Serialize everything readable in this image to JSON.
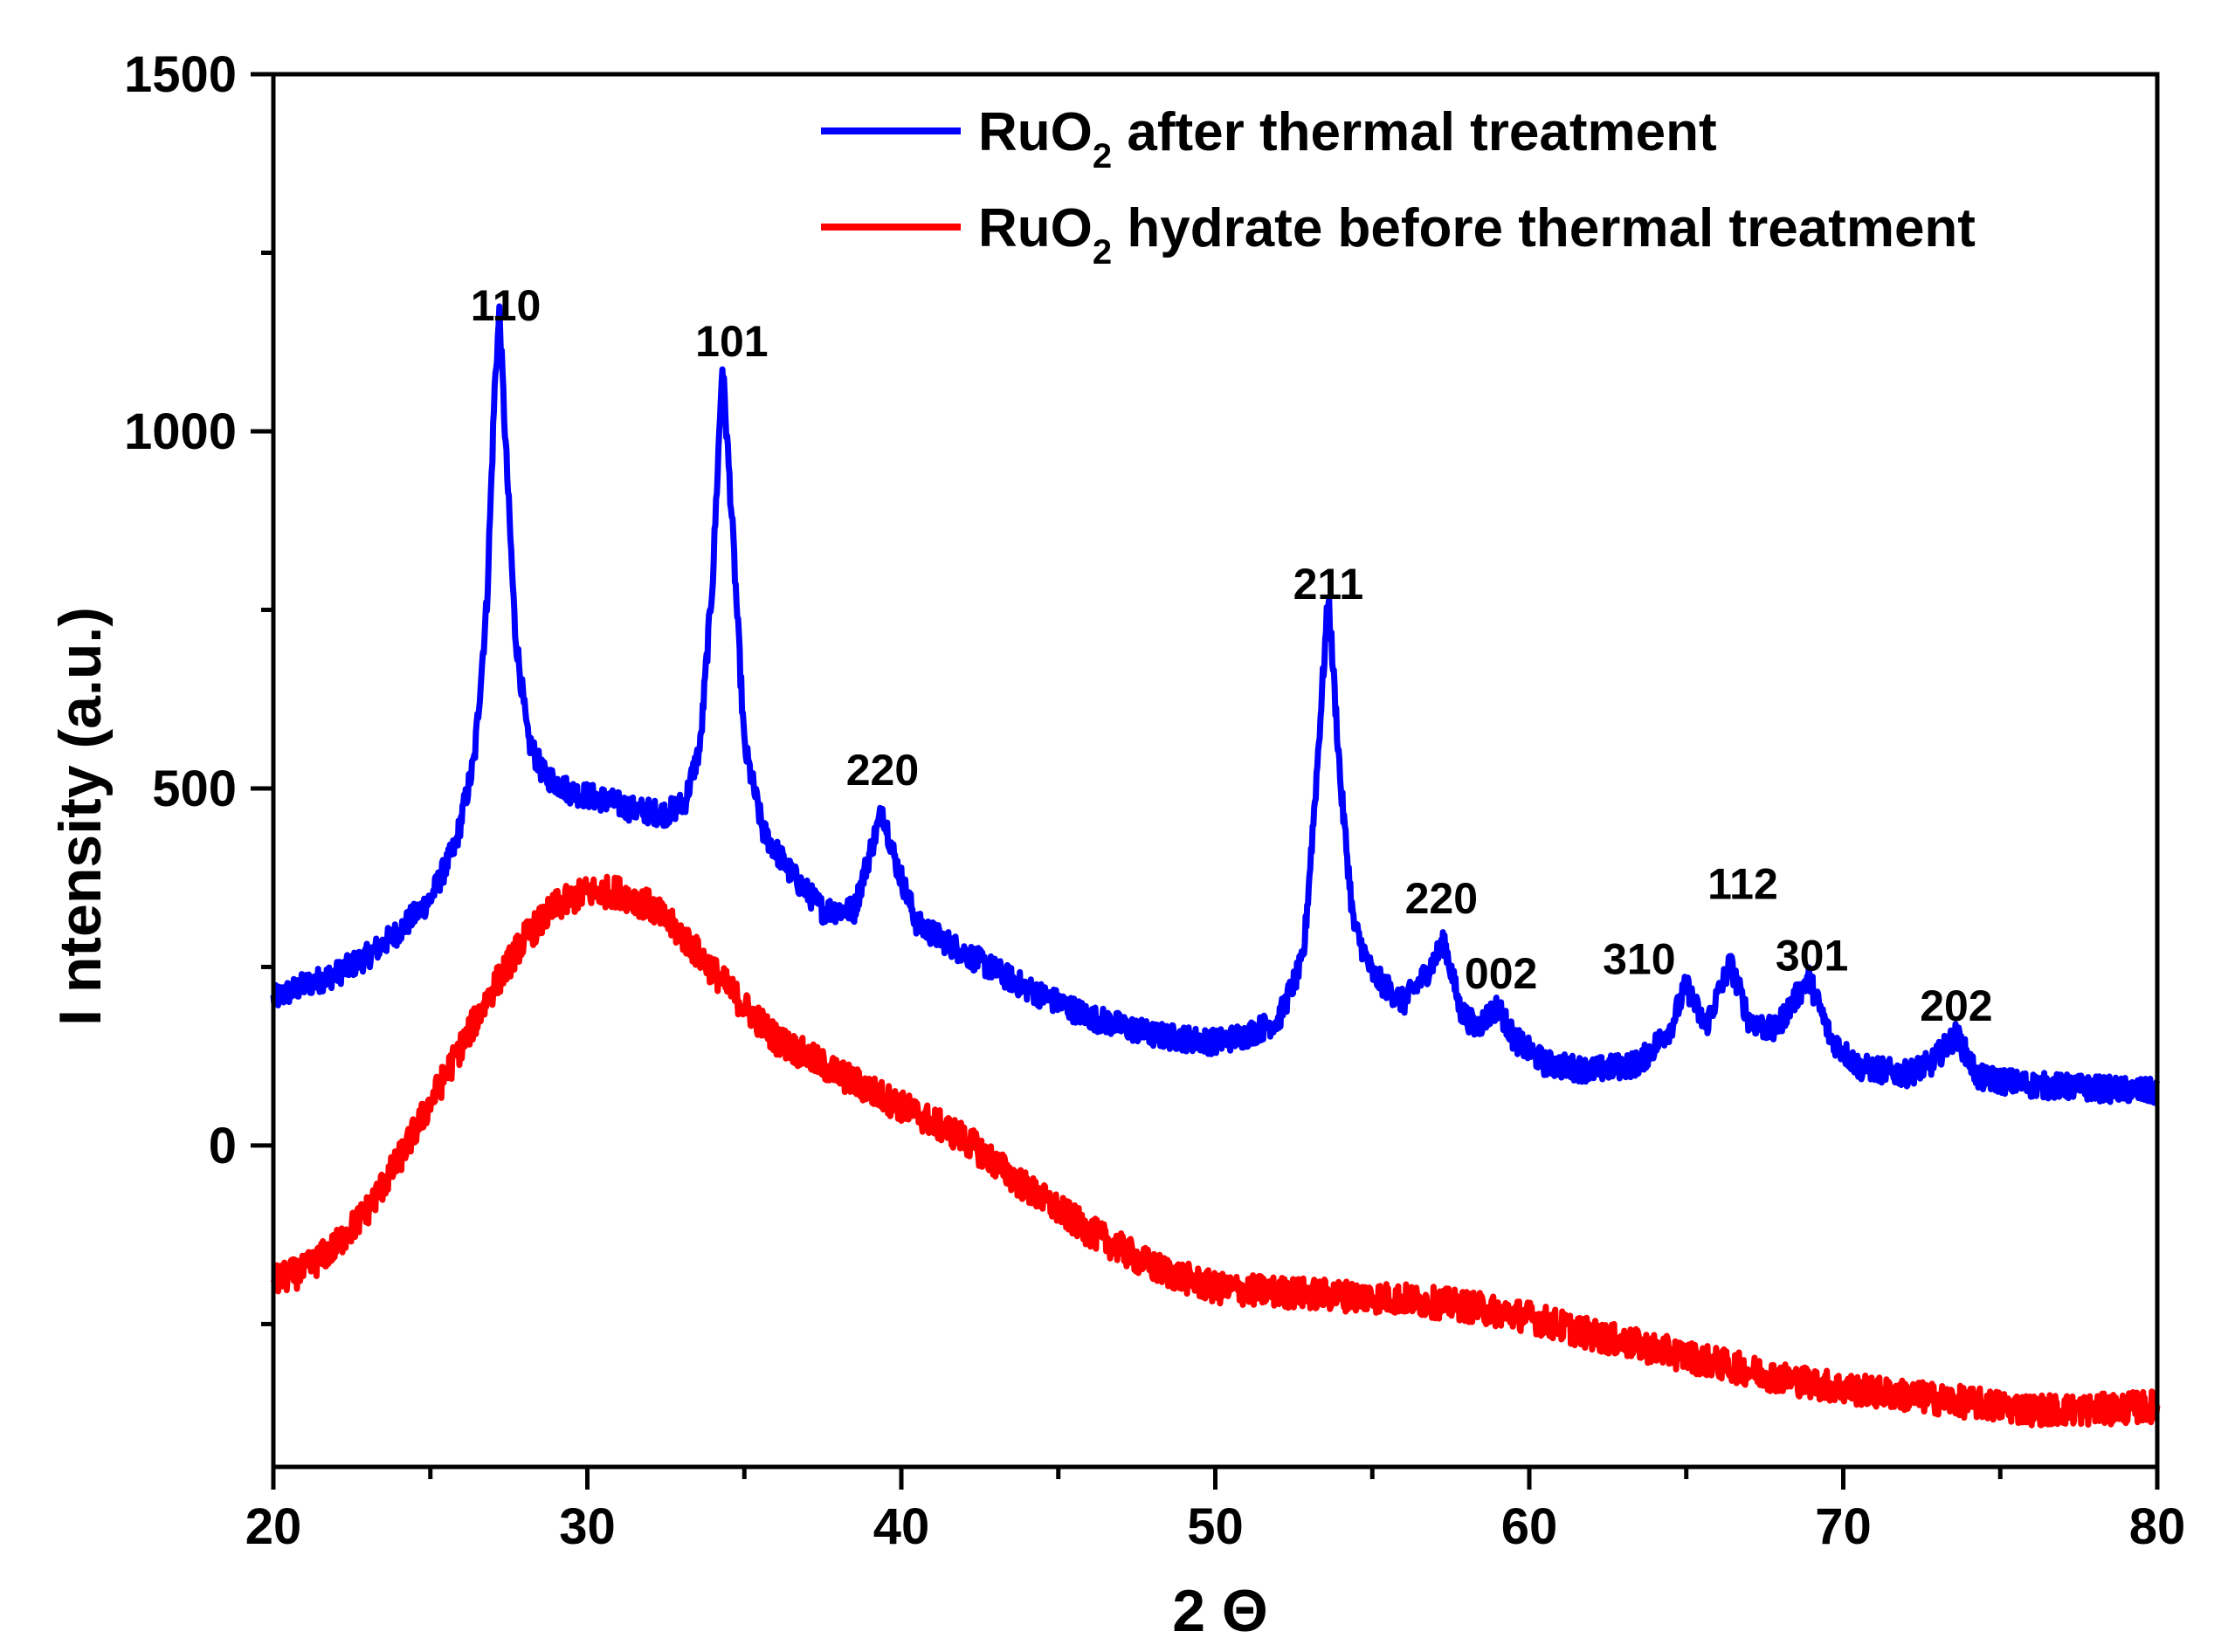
{
  "chart_data": {
    "type": "line",
    "title": "",
    "xlabel": "2 Θ",
    "ylabel": "I ntensity (a.u.)",
    "xlim": [
      20,
      80
    ],
    "ylim": [
      -450,
      1500
    ],
    "x_ticks": [
      20,
      30,
      40,
      50,
      60,
      70,
      80
    ],
    "y_ticks": [
      0,
      500,
      1000,
      1500
    ],
    "grid": false,
    "legend_position": "top-right",
    "series": [
      {
        "name": "RuO2 after thermal treatment",
        "legend_main": "RuO",
        "legend_sub": "2",
        "legend_rest": " after thermal treatment",
        "color": "#0000ff",
        "points": [
          [
            20,
            205
          ],
          [
            21,
            225
          ],
          [
            22,
            240
          ],
          [
            23,
            265
          ],
          [
            24,
            300
          ],
          [
            25,
            345
          ],
          [
            25.8,
            420
          ],
          [
            26.4,
            540
          ],
          [
            26.8,
            760
          ],
          [
            27.05,
            1060
          ],
          [
            27.2,
            1165
          ],
          [
            27.4,
            980
          ],
          [
            27.7,
            720
          ],
          [
            28.1,
            570
          ],
          [
            28.6,
            520
          ],
          [
            29.5,
            495
          ],
          [
            30.5,
            485
          ],
          [
            31.5,
            470
          ],
          [
            32.5,
            465
          ],
          [
            33.1,
            480
          ],
          [
            33.6,
            560
          ],
          [
            34.0,
            800
          ],
          [
            34.3,
            1095
          ],
          [
            34.6,
            880
          ],
          [
            35.0,
            560
          ],
          [
            35.6,
            440
          ],
          [
            36.5,
            380
          ],
          [
            37.5,
            330
          ],
          [
            38.5,
            330
          ],
          [
            39.0,
            410
          ],
          [
            39.4,
            470
          ],
          [
            39.8,
            400
          ],
          [
            40.5,
            310
          ],
          [
            42,
            270
          ],
          [
            44,
            220
          ],
          [
            46,
            180
          ],
          [
            48,
            155
          ],
          [
            50,
            145
          ],
          [
            51,
            155
          ],
          [
            52,
            175
          ],
          [
            52.8,
            260
          ],
          [
            53.2,
            500
          ],
          [
            53.6,
            770
          ],
          [
            54.0,
            500
          ],
          [
            54.4,
            310
          ],
          [
            55,
            240
          ],
          [
            56,
            200
          ],
          [
            56.7,
            240
          ],
          [
            57.3,
            285
          ],
          [
            57.8,
            190
          ],
          [
            58.3,
            165
          ],
          [
            59.0,
            195
          ],
          [
            59.5,
            150
          ],
          [
            60.5,
            115
          ],
          [
            62,
            105
          ],
          [
            63.5,
            115
          ],
          [
            64.5,
            165
          ],
          [
            65.0,
            225
          ],
          [
            65.6,
            165
          ],
          [
            66.4,
            255
          ],
          [
            67.0,
            175
          ],
          [
            67.8,
            160
          ],
          [
            68.9,
            235
          ],
          [
            69.6,
            150
          ],
          [
            70.5,
            110
          ],
          [
            72,
            100
          ],
          [
            72.8,
            115
          ],
          [
            73.6,
            155
          ],
          [
            74.3,
            95
          ],
          [
            76,
            85
          ],
          [
            78,
            80
          ],
          [
            80,
            75
          ]
        ],
        "noise": 18
      },
      {
        "name": "RuO2 hydrate before thermal treatment",
        "legend_main": "RuO",
        "legend_sub": "2",
        "legend_rest": " hydrate before thermal treatment",
        "color": "#ff0000",
        "points": [
          [
            20,
            -190
          ],
          [
            21,
            -175
          ],
          [
            22,
            -140
          ],
          [
            23,
            -90
          ],
          [
            24,
            -20
          ],
          [
            25,
            60
          ],
          [
            26,
            140
          ],
          [
            27,
            220
          ],
          [
            28,
            290
          ],
          [
            29,
            335
          ],
          [
            30,
            355
          ],
          [
            31,
            355
          ],
          [
            32,
            335
          ],
          [
            33,
            295
          ],
          [
            34,
            245
          ],
          [
            35,
            195
          ],
          [
            36,
            150
          ],
          [
            38,
            100
          ],
          [
            40,
            55
          ],
          [
            42,
            10
          ],
          [
            44,
            -60
          ],
          [
            46,
            -120
          ],
          [
            48,
            -170
          ],
          [
            50,
            -200
          ],
          [
            52,
            -205
          ],
          [
            54,
            -210
          ],
          [
            56,
            -215
          ],
          [
            58,
            -225
          ],
          [
            60,
            -240
          ],
          [
            62,
            -265
          ],
          [
            64,
            -285
          ],
          [
            66,
            -305
          ],
          [
            68,
            -325
          ],
          [
            70,
            -340
          ],
          [
            72,
            -350
          ],
          [
            74,
            -360
          ],
          [
            76,
            -370
          ],
          [
            78,
            -370
          ],
          [
            80,
            -365
          ]
        ],
        "noise": 22
      }
    ],
    "annotations": [
      {
        "text": "110",
        "x": 27.4,
        "y": 1155
      },
      {
        "text": "101",
        "x": 34.6,
        "y": 1105
      },
      {
        "text": "220",
        "x": 39.4,
        "y": 505
      },
      {
        "text": "211",
        "x": 53.6,
        "y": 765
      },
      {
        "text": "220",
        "x": 57.2,
        "y": 325
      },
      {
        "text": "002",
        "x": 59.1,
        "y": 220
      },
      {
        "text": "310",
        "x": 63.5,
        "y": 240
      },
      {
        "text": "112",
        "x": 66.8,
        "y": 345
      },
      {
        "text": "301",
        "x": 69.0,
        "y": 245
      },
      {
        "text": "202",
        "x": 73.6,
        "y": 175
      }
    ]
  }
}
